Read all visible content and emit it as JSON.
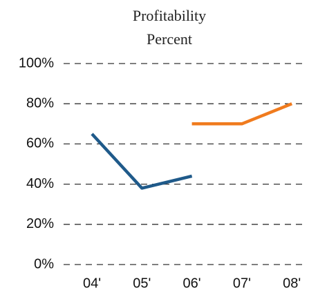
{
  "chart_data": {
    "type": "line",
    "title": "Profitability Percent",
    "categories": [
      "04'",
      "05'",
      "06'",
      "07'",
      "08'"
    ],
    "series": [
      {
        "color": "#1f5a8a",
        "values": [
          65,
          38,
          44,
          null,
          null
        ]
      },
      {
        "color": "#f07b1e",
        "values": [
          null,
          null,
          70,
          70,
          80
        ]
      }
    ],
    "ylim": [
      0,
      100
    ],
    "yticks": [
      {
        "value": 0,
        "label": "0%"
      },
      {
        "value": 20,
        "label": "20%"
      },
      {
        "value": 40,
        "label": "40%"
      },
      {
        "value": 60,
        "label": "60%"
      },
      {
        "value": 80,
        "label": "80%"
      },
      {
        "value": 100,
        "label": "100%"
      }
    ],
    "grid": true
  }
}
